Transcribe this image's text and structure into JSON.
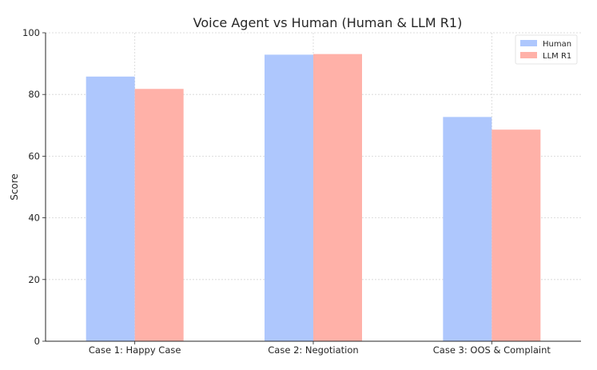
{
  "chart_data": {
    "type": "bar",
    "title": "Voice Agent vs Human (Human & LLM R1)",
    "xlabel": "",
    "ylabel": "Score",
    "categories": [
      "Case 1: Happy Case",
      "Case 2: Negotiation",
      "Case 3: OOS & Complaint"
    ],
    "series": [
      {
        "name": "Human",
        "values": [
          85.8,
          92.9,
          72.7
        ],
        "color": "#aec7fd"
      },
      {
        "name": "LLM R1",
        "values": [
          81.8,
          93.1,
          68.6
        ],
        "color": "#ffb1a8"
      }
    ],
    "ylim": [
      0,
      100
    ],
    "yticks": [
      "0",
      "20",
      "40",
      "60",
      "80",
      "100"
    ],
    "grid": true,
    "legend_position": "top-right"
  }
}
